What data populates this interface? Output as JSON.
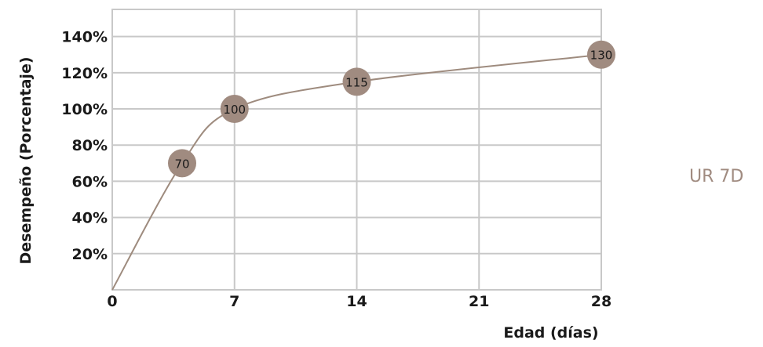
{
  "chart_data": {
    "type": "line",
    "title": "",
    "xlabel": "Edad (días)",
    "ylabel": "Desempeño (Porcentaje)",
    "x_ticks": [
      0,
      7,
      14,
      21,
      28
    ],
    "x_tick_labels": [
      "0",
      "7",
      "14",
      "21",
      "28"
    ],
    "y_ticks": [
      20,
      40,
      60,
      80,
      100,
      120,
      140
    ],
    "y_tick_labels": [
      "20%",
      "40%",
      "60%",
      "80%",
      "100%",
      "120%",
      "140%"
    ],
    "xlim": [
      0,
      28
    ],
    "ylim": [
      0,
      155
    ],
    "grid": true,
    "series": [
      {
        "name": "UR 7D",
        "color": "#a08b80",
        "points": [
          {
            "x": 4,
            "y": 70,
            "label": "70"
          },
          {
            "x": 7,
            "y": 100,
            "label": "100"
          },
          {
            "x": 14,
            "y": 115,
            "label": "115"
          },
          {
            "x": 28,
            "y": 130,
            "label": "130"
          }
        ]
      }
    ]
  }
}
